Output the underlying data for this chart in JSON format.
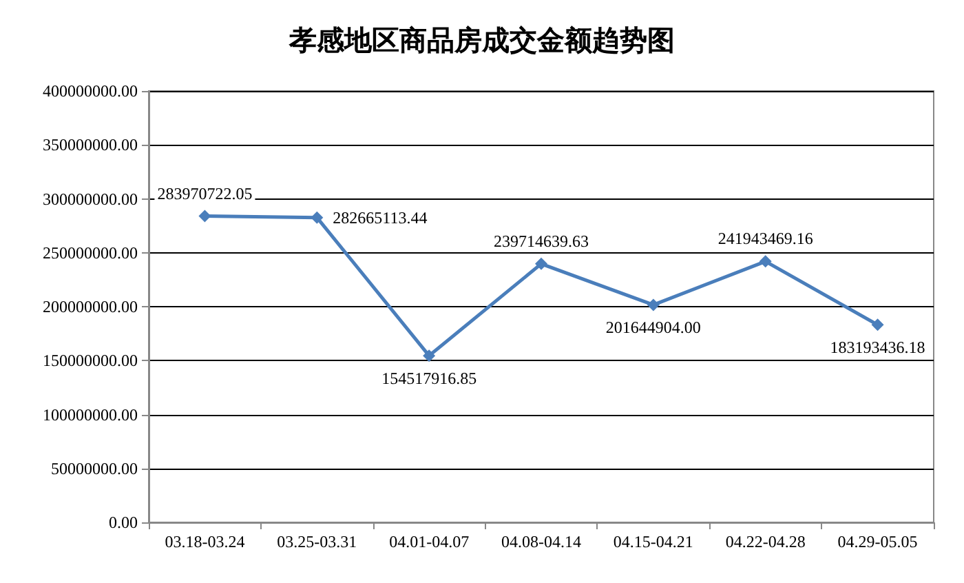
{
  "chart_data": {
    "type": "line",
    "title": "孝感地区商品房成交金额趋势图",
    "categories": [
      "03.18-03.24",
      "03.25-03.31",
      "04.01-04.07",
      "04.08-04.14",
      "04.15-04.21",
      "04.22-04.28",
      "04.29-05.05"
    ],
    "series": [
      {
        "color": "#4a7ebb",
        "values": [
          283970722.05,
          282665113.44,
          154517916.85,
          239714639.63,
          201644904.0,
          241943469.16,
          183193436.18
        ],
        "value_labels": [
          "283970722.05",
          "282665113.44",
          "154517916.85",
          "239714639.63",
          "201644904.00",
          "241943469.16",
          "183193436.18"
        ]
      }
    ],
    "ylim": [
      0,
      400000000
    ],
    "yticks": [
      {
        "value": 0,
        "label": "0.00"
      },
      {
        "value": 50000000,
        "label": "50000000.00"
      },
      {
        "value": 100000000,
        "label": "100000000.00"
      },
      {
        "value": 150000000,
        "label": "150000000.00"
      },
      {
        "value": 200000000,
        "label": "200000000.00"
      },
      {
        "value": 250000000,
        "label": "250000000.00"
      },
      {
        "value": 300000000,
        "label": "300000000.00"
      },
      {
        "value": 350000000,
        "label": "350000000.00"
      },
      {
        "value": 400000000,
        "label": "400000000.00"
      }
    ],
    "grid": "y",
    "marker": "diamond",
    "line_style": "solid"
  }
}
